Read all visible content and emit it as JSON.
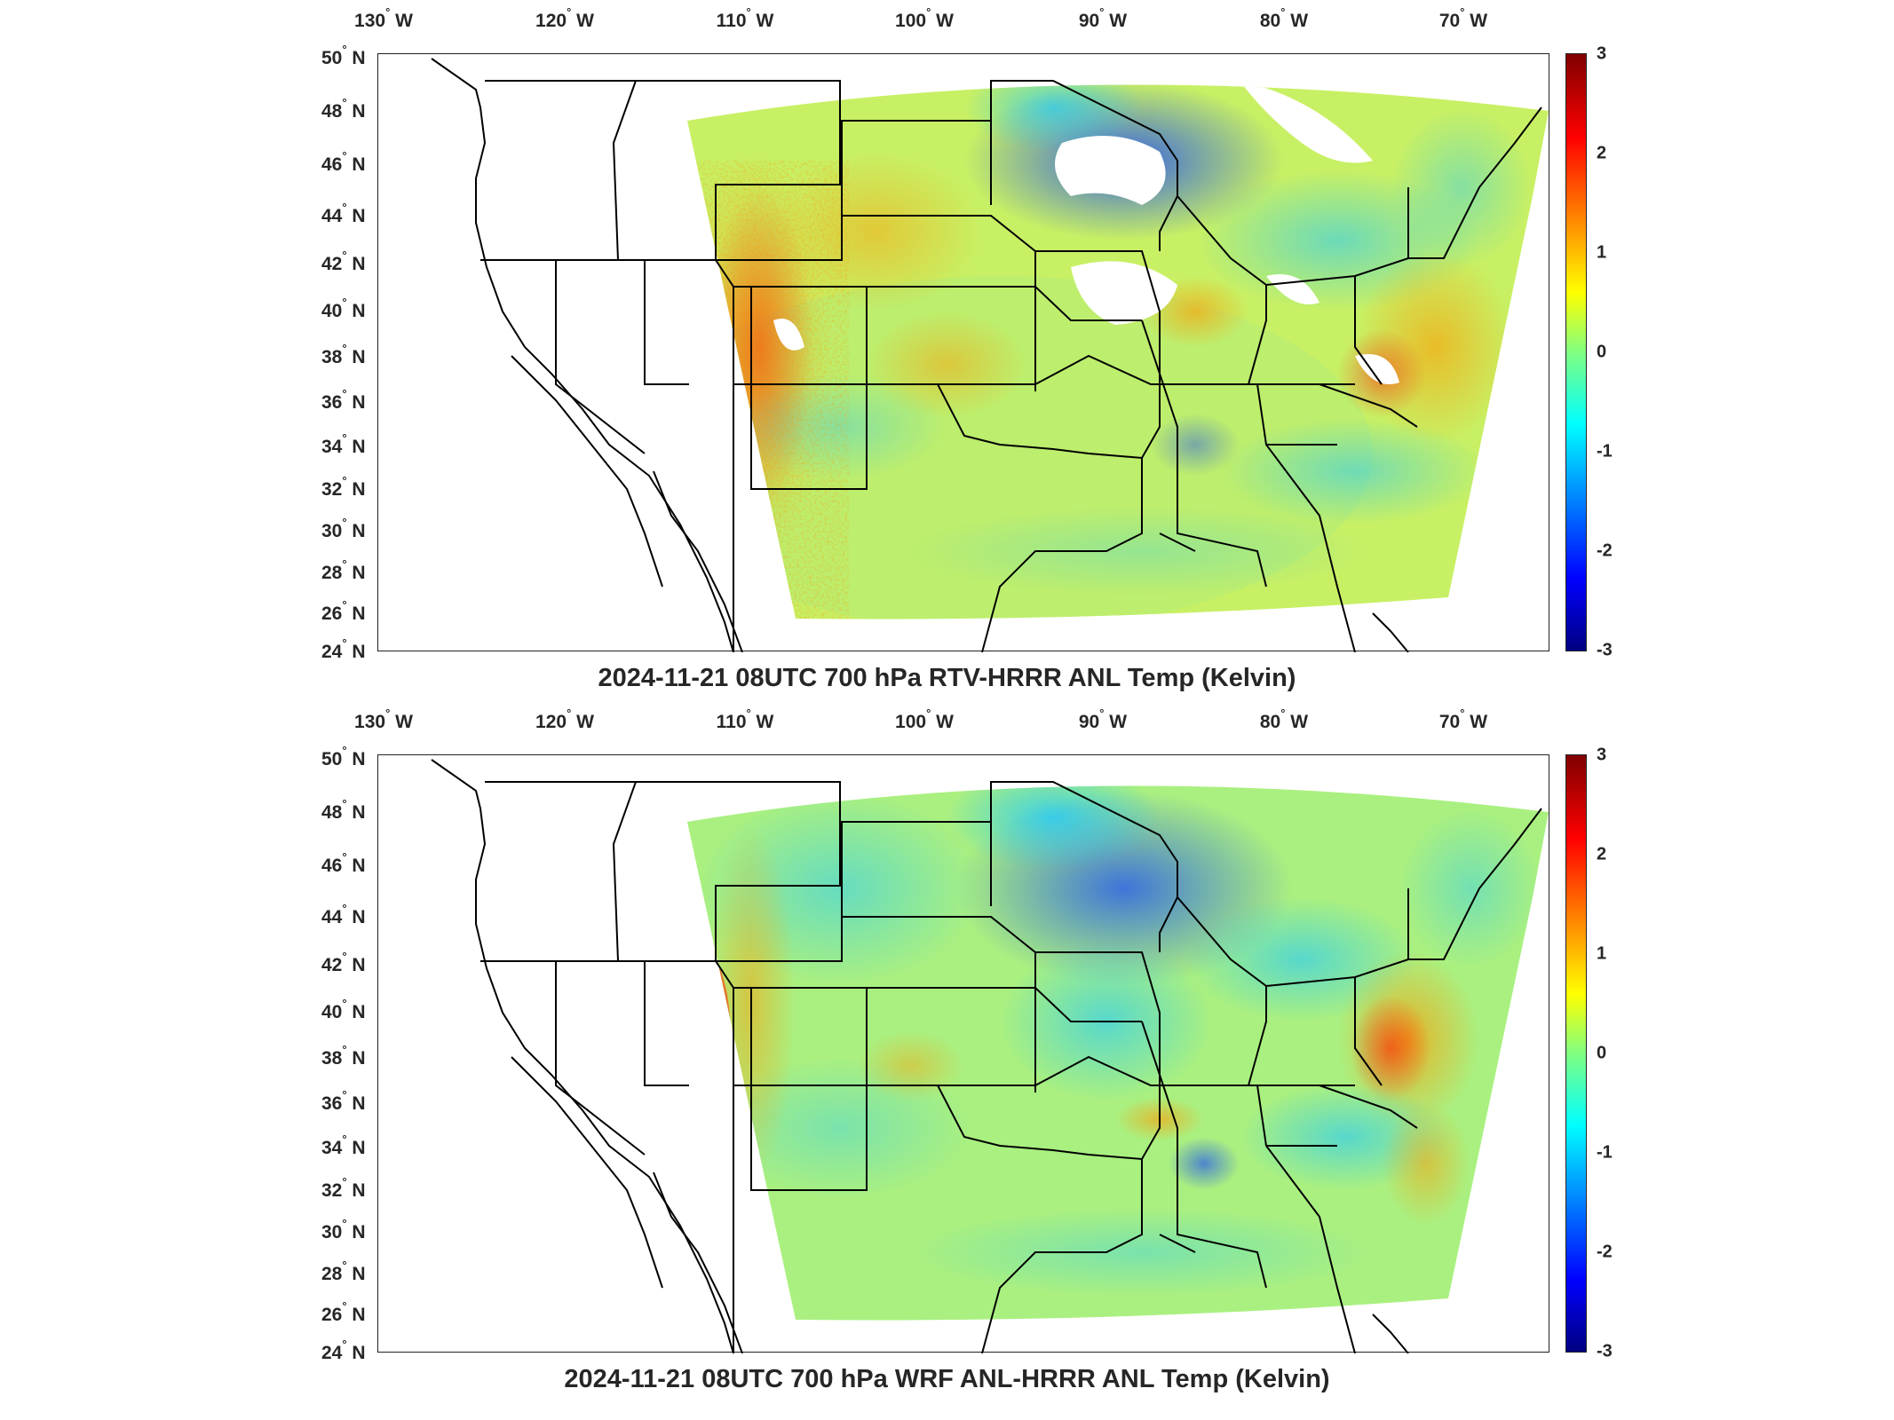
{
  "panels": [
    {
      "title": "2024-11-21 08UTC 700 hPa RTV-HRRR ANL Temp (Kelvin)",
      "variant": "rtv"
    },
    {
      "title": "2024-11-21 08UTC 700 hPa WRF ANL-HRRR ANL Temp (Kelvin)",
      "variant": "wrf"
    }
  ],
  "lon_labels": [
    "130",
    "120",
    "110",
    "100",
    "90",
    "80",
    "70"
  ],
  "lon_suffix": "W",
  "lat_labels": [
    "50",
    "48",
    "46",
    "44",
    "42",
    "40",
    "38",
    "36",
    "34",
    "32",
    "30",
    "28",
    "26",
    "24"
  ],
  "lat_suffix": "N",
  "degree": "°",
  "colorbar": {
    "ticks": [
      "3",
      "2",
      "1",
      "0",
      "-1",
      "-2",
      "-3"
    ],
    "colormap": "jet",
    "min": -3,
    "max": 3
  }
}
